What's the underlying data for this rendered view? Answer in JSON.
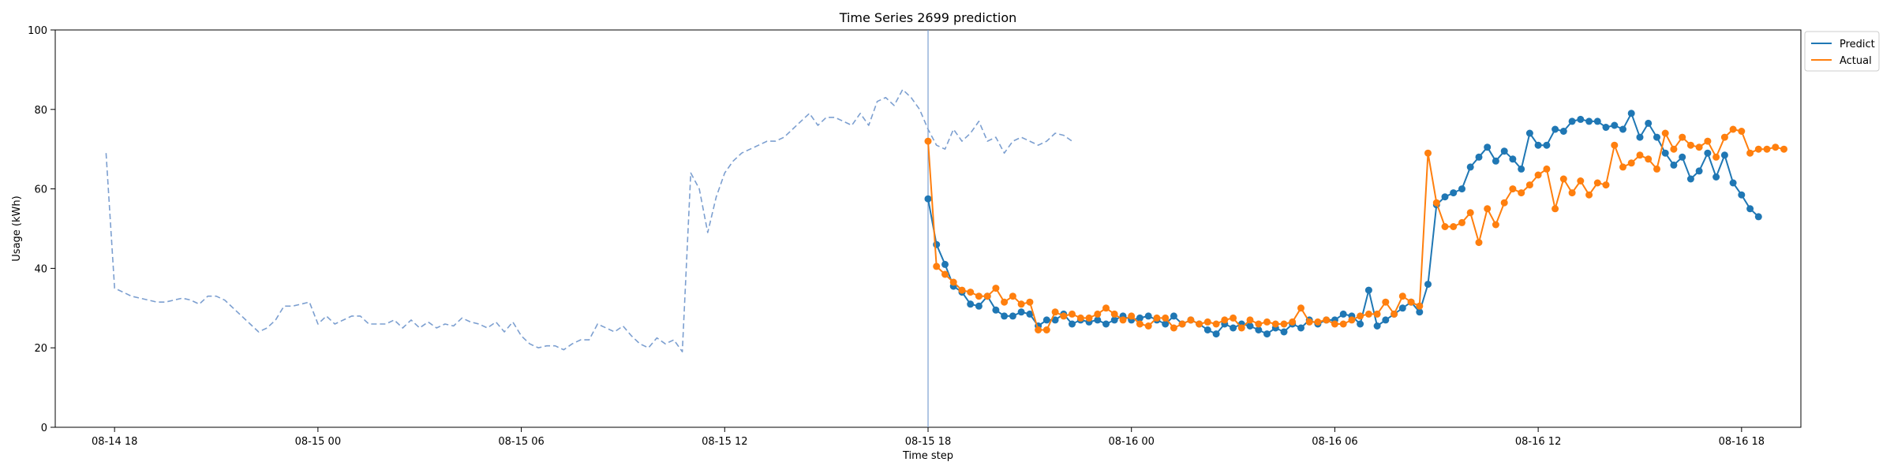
{
  "chart_data": {
    "type": "line",
    "title": "Time Series 2699 prediction",
    "xlabel": "Time step",
    "ylabel": "Usage (kWh)",
    "ylim": [
      0,
      100
    ],
    "xlim": [
      "08-14 16:15",
      "08-16 19:45"
    ],
    "yticks": [
      0,
      20,
      40,
      60,
      80,
      100
    ],
    "xticks": [
      {
        "t": "08-14 18:00",
        "label": "08-14 18"
      },
      {
        "t": "08-15 00:00",
        "label": "08-15 00"
      },
      {
        "t": "08-15 06:00",
        "label": "08-15 06"
      },
      {
        "t": "08-15 12:00",
        "label": "08-15 12"
      },
      {
        "t": "08-15 18:00",
        "label": "08-15 18"
      },
      {
        "t": "08-16 00:00",
        "label": "08-16 00"
      },
      {
        "t": "08-16 06:00",
        "label": "08-16 06"
      },
      {
        "t": "08-16 12:00",
        "label": "08-16 12"
      },
      {
        "t": "08-16 18:00",
        "label": "08-16 18"
      }
    ],
    "split_time": "08-15 18:00",
    "series": [
      {
        "name": "",
        "style": "dashed",
        "start": "08-14 17:45",
        "interval_minutes": 15,
        "values": [
          69,
          35,
          34,
          33,
          32.5,
          32,
          31.5,
          31.5,
          32,
          32.5,
          32,
          31,
          33,
          33,
          32,
          30,
          28,
          26,
          24,
          25,
          27,
          30.5,
          30.5,
          31,
          31.5,
          26,
          28,
          26,
          27,
          28,
          28,
          26,
          26,
          26,
          27,
          25,
          27,
          25,
          26.5,
          25,
          26,
          25.5,
          27.5,
          26.5,
          26,
          25,
          26.5,
          24,
          26.5,
          23,
          21,
          20,
          20.5,
          20.5,
          19.5,
          21,
          22,
          22,
          26,
          25,
          24,
          25.5,
          23,
          21,
          20,
          22.5,
          21,
          22,
          19,
          64,
          60,
          49,
          58,
          64,
          67,
          69,
          70,
          71,
          72,
          72,
          73,
          75,
          77,
          79,
          76,
          78,
          78,
          77,
          76,
          79,
          76,
          82,
          83,
          81,
          85,
          83,
          80,
          75,
          71,
          70,
          75,
          72,
          74,
          77,
          72,
          73,
          69,
          72,
          73,
          72,
          71,
          72,
          74,
          73.5,
          72
        ]
      },
      {
        "name": "Predict",
        "style": "solid-markers",
        "start": "08-15 18:00",
        "interval_minutes": 15,
        "values": [
          57.5,
          46,
          41,
          35.5,
          34,
          31,
          30.5,
          33,
          29.5,
          28,
          28,
          29,
          28.5,
          25.5,
          27,
          27,
          28.5,
          26,
          27,
          26.5,
          27,
          26,
          27,
          28,
          27,
          27.5,
          28,
          27,
          26,
          28,
          26,
          27,
          26,
          24.5,
          23.5,
          26,
          25,
          26,
          25.5,
          24.5,
          23.5,
          25,
          24,
          26,
          25,
          27,
          26,
          27,
          27,
          28.5,
          28,
          26,
          34.5,
          25.5,
          27,
          28.5,
          30,
          31.5,
          29,
          36,
          56,
          58,
          59,
          60,
          65.5,
          68,
          70.5,
          67,
          69.5,
          67.5,
          65,
          74,
          71,
          71,
          75,
          74.5,
          77,
          77.5,
          77,
          77,
          75.5,
          76,
          75,
          79,
          73,
          76.5,
          73,
          69,
          66,
          68,
          62.5,
          64.5,
          69,
          63,
          68.5,
          61.5,
          58.5,
          55,
          53
        ]
      },
      {
        "name": "Actual",
        "style": "solid-markers",
        "start": "08-15 18:00",
        "interval_minutes": 15,
        "values": [
          72,
          40.5,
          38.5,
          36.5,
          34.5,
          34,
          33,
          33,
          35,
          31.5,
          33,
          31,
          31.5,
          24.5,
          24.5,
          29,
          28,
          28.5,
          27.5,
          27.5,
          28.5,
          30,
          28.5,
          27,
          28,
          26,
          25.5,
          27.5,
          27.5,
          25,
          26,
          27,
          26,
          26.5,
          26,
          27,
          27.5,
          25,
          27,
          26,
          26.5,
          26,
          26,
          26.5,
          30,
          26.5,
          26.5,
          27,
          26,
          26,
          27,
          28,
          28.5,
          28.5,
          31.5,
          28.5,
          33,
          31.5,
          30.5,
          69,
          56.5,
          50.5,
          50.5,
          51.5,
          54,
          46.5,
          55,
          51,
          56.5,
          60,
          59,
          61,
          63.5,
          65,
          55,
          62.5,
          59,
          62,
          58.5,
          61.5,
          61,
          71,
          65.5,
          66.5,
          68.5,
          67.5,
          65,
          74,
          70,
          73,
          71,
          70.5,
          72,
          68,
          73,
          75,
          74.5,
          69,
          70,
          70,
          70.5,
          70
        ]
      }
    ],
    "legend": {
      "placement": "top-right",
      "entries": [
        "Predict",
        "Actual"
      ]
    },
    "colors": {
      "history": "#7c9fd0",
      "predict": "#1f77b4",
      "actual": "#ff7f0e",
      "split_line": "#7c9fd0"
    },
    "grid": false
  }
}
